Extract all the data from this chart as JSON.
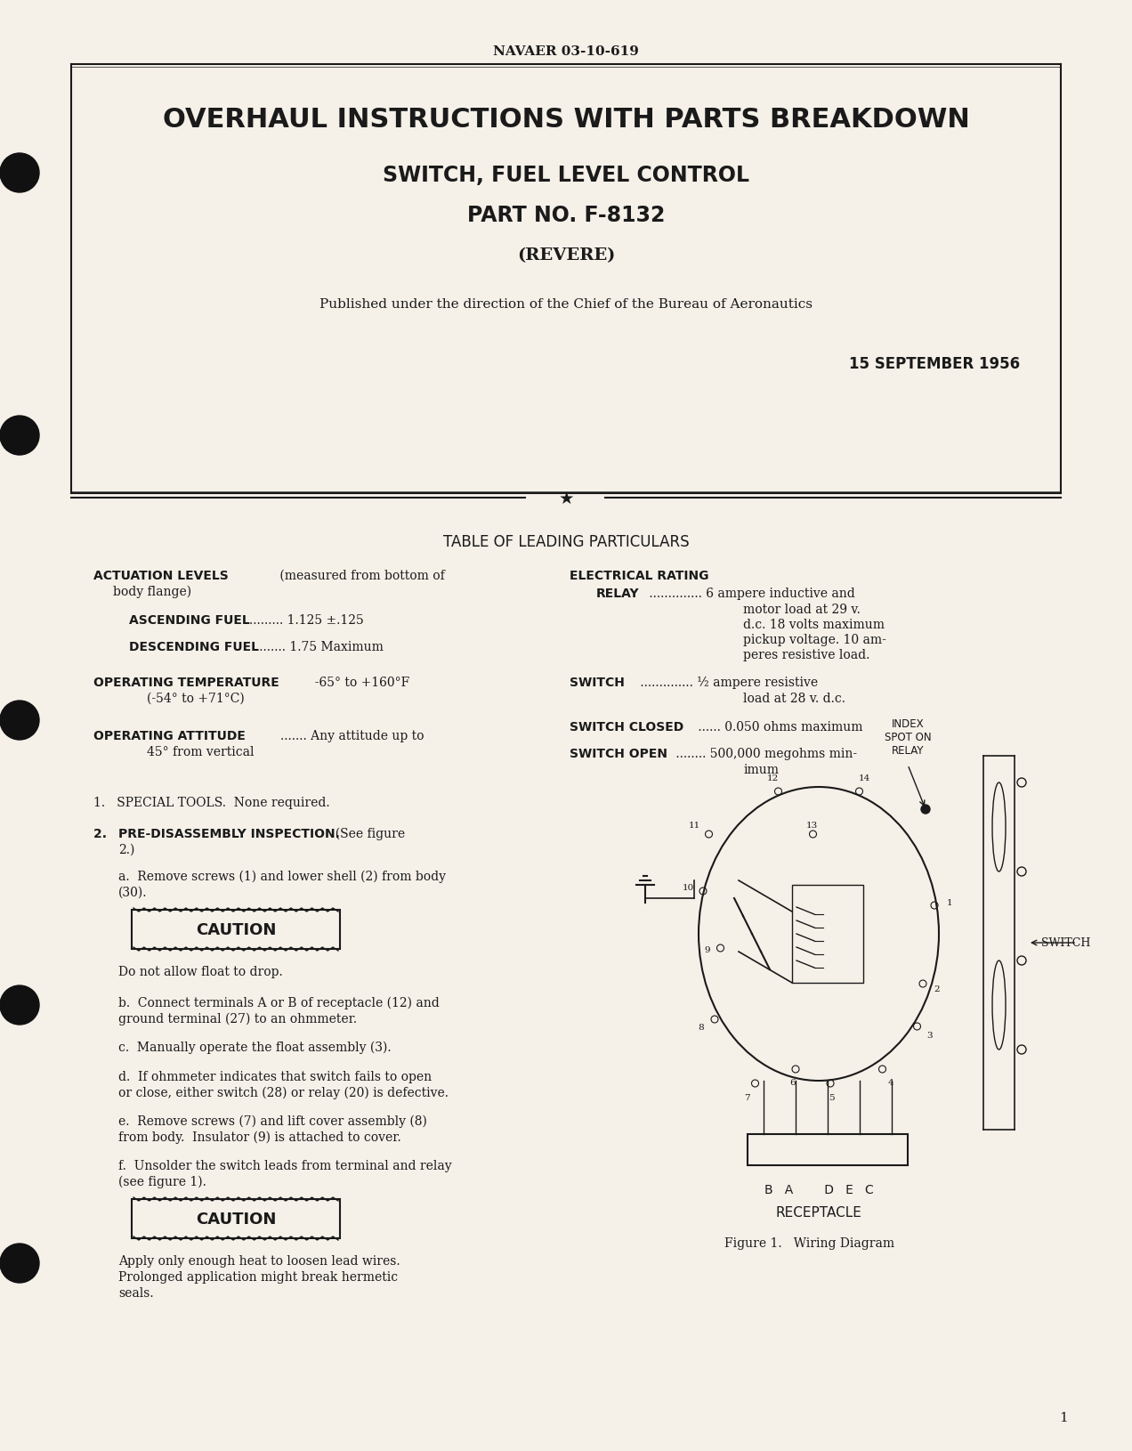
{
  "bg_color": "#f5f0e8",
  "page_color": "#f0ebe0",
  "border_color": "#1a1a1a",
  "text_color": "#1a1a1a",
  "header_text": "NAVAER 03-10-619",
  "title_line1": "OVERHAUL INSTRUCTIONS WITH PARTS BREAKDOWN",
  "title_line2": "SWITCH, FUEL LEVEL CONTROL",
  "title_line3": "PART NO. F-8132",
  "title_line4": "(REVERE)",
  "published_text": "Published under the direction of the Chief of the Bureau of Aeronautics",
  "date_text": "15 SEPTEMBER 1956",
  "table_heading": "TABLE OF LEADING PARTICULARS",
  "left_col": [
    "ACTUATION LEVELS (measured from bottom of",
    "body flange)",
    "",
    "   ASCENDING FUEL ......... 1.125 ±.125",
    "",
    "   DESCENDING FUEL ........ 1.75 Maximum",
    "",
    "OPERATING TEMPERATURE  -65° to +160°F",
    "                               (-54° to +71°C)",
    "",
    "OPERATING ATTITUDE ....... Any attitude up to",
    "                               45° from vertical"
  ],
  "right_col": [
    "ELECTRICAL RATING",
    "   RELAY .............. 6 ampere inductive and",
    "                               motor load at 29 v.",
    "                               d.c. 18 volts maximum",
    "                               pickup voltage. 10 am-",
    "                               peres resistive load.",
    "",
    "SWITCH .............. ½ ampere resistive",
    "                               load at 28 v. d.c.",
    "",
    "SWITCH CLOSED ...... 0.050 ohms maximum",
    "",
    "SWITCH OPEN ........ 500,000 megohms min-",
    "                               imum"
  ],
  "section1_text": "1.   SPECIAL TOOLS.  None required.",
  "section2_text": "2.   PRE-DISASSEMBLY INSPECTION.  (See figure\n2.)",
  "section2a": "    a.  Remove screws (1) and lower shell (2) from body\n(30).",
  "caution1": "CAUTION",
  "caution1_text": "Do not allow float to drop.",
  "section2b": "    b.  Connect terminals A or B of receptacle (12) and\nground terminal (27) to an ohmmeter.",
  "section2c": "    c.  Manually operate the float assembly (3).",
  "section2d": "    d.  If ohmmeter indicates that switch fails to open\nor close, either switch (28) or relay (20) is defective.",
  "section2e": "    e.  Remove screws (7) and lift cover assembly (8)\nfrom body.  Insulator (9) is attached to cover.",
  "section2f": "    f.  Unsolder the switch leads from terminal and relay\n(see figure 1).",
  "caution2": "CAUTION",
  "caution2_text": "Apply only enough heat to loosen lead wires.\nProlonged application might break hermetic\nseals.",
  "page_number": "1",
  "figure_caption": "Figure 1.   Wiring Diagram",
  "index_spot_label": "INDEX\nSPOT ON\nRELAY",
  "switch_label": "SWITCH",
  "receptacle_label": "RECEPTACLE",
  "receptacle_terminals": "B   A        D   E   C"
}
